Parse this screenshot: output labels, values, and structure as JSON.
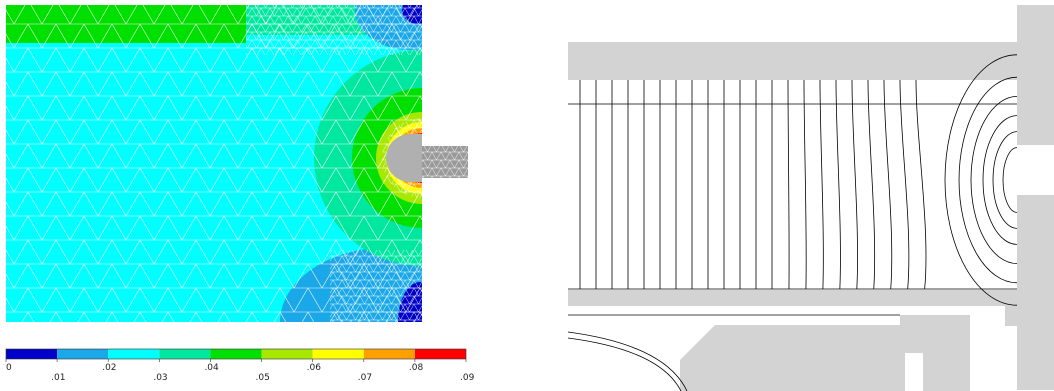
{
  "colorbar": {
    "ticks": [
      {
        "value": "0",
        "row": "top"
      },
      {
        "value": ".01",
        "row": "bottom"
      },
      {
        "value": ".02",
        "row": "top"
      },
      {
        "value": ".03",
        "row": "bottom"
      },
      {
        "value": ".04",
        "row": "top"
      },
      {
        "value": ".05",
        "row": "bottom"
      },
      {
        "value": ".06",
        "row": "top"
      },
      {
        "value": ".07",
        "row": "bottom"
      },
      {
        "value": ".08",
        "row": "top"
      },
      {
        "value": ".09",
        "row": "bottom"
      }
    ],
    "colors": [
      "#0000c8",
      "#1aa8e8",
      "#00ffff",
      "#00e8a0",
      "#00e000",
      "#a8e800",
      "#ffff00",
      "#ffa000",
      "#ff0000"
    ]
  },
  "field_colors": {
    "background": "#00ffff",
    "band_top": "#00e000",
    "mid": "#00e8a0",
    "low": "#1aa8e8",
    "very_low": "#0000c8",
    "warm": "#ffff00",
    "hot": "#ffa000",
    "peak": "#ff0000",
    "mesh_line": "#ffffff",
    "insert": "#9a9a9a"
  },
  "flux_plot": {
    "part_fill": "#d3d3d3",
    "line_color": "#000000"
  }
}
